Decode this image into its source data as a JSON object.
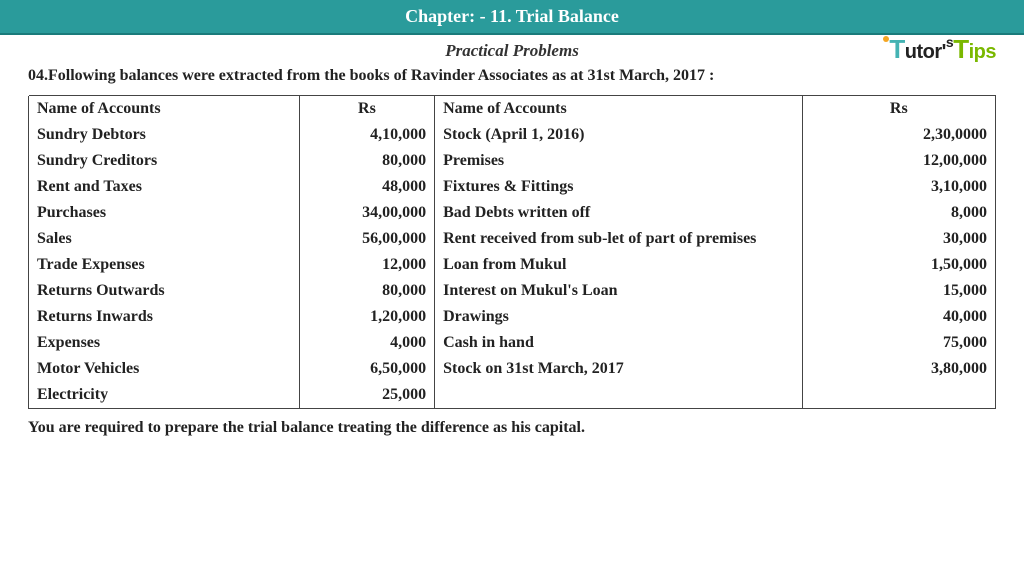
{
  "chapter": "Chapter: - 11. Trial Balance",
  "subtitle": "Practical Problems",
  "question": "04.Following balances were extracted from the books of Ravinder Associates as at 31st March, 2017 :",
  "footer": "You are required to prepare the trial balance treating the difference as his capital.",
  "headers": {
    "name1": "Name of Accounts",
    "rs1": "Rs",
    "name2": "Name of Accounts",
    "rs2": "Rs"
  },
  "rows": [
    {
      "n1": "Sundry Debtors",
      "r1": "4,10,000",
      "n2": "Stock (April 1, 2016)",
      "r2": "2,30,0000"
    },
    {
      "n1": "Sundry Creditors",
      "r1": "80,000",
      "n2": "Premises",
      "r2": "12,00,000"
    },
    {
      "n1": "Rent and Taxes",
      "r1": "48,000",
      "n2": "Fixtures & Fittings",
      "r2": "3,10,000"
    },
    {
      "n1": "Purchases",
      "r1": "34,00,000",
      "n2": "Bad Debts written off",
      "r2": "8,000"
    },
    {
      "n1": "Sales",
      "r1": "56,00,000",
      "n2": "Rent received from sub-let of part of premises",
      "r2": "30,000"
    },
    {
      "n1": "Trade Expenses",
      "r1": "12,000",
      "n2": "Loan from Mukul",
      "r2": "1,50,000"
    },
    {
      "n1": "Returns Outwards",
      "r1": "80,000",
      "n2": "Interest on Mukul's Loan",
      "r2": "15,000"
    },
    {
      "n1": "Returns Inwards",
      "r1": "1,20,000",
      "n2": "Drawings",
      "r2": "40,000"
    },
    {
      "n1": "Expenses",
      "r1": "4,000",
      "n2": "Cash in hand",
      "r2": "75,000"
    },
    {
      "n1": "Motor Vehicles",
      "r1": "6,50,000",
      "n2": "Stock on 31st March, 2017",
      "r2": "3,80,000"
    },
    {
      "n1": "Electricity",
      "r1": "25,000",
      "n2": "",
      "r2": ""
    }
  ],
  "logo": {
    "t1": "T",
    "utor": "utor'",
    "s": "s",
    "t2": "T",
    "ips": "ips"
  }
}
